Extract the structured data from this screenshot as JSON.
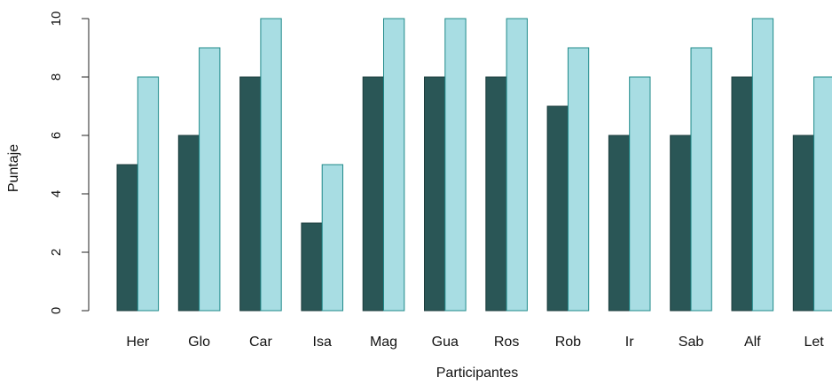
{
  "chart_data": {
    "type": "bar",
    "categories": [
      "Her",
      "Glo",
      "Car",
      "Isa",
      "Mag",
      "Gua",
      "Ros",
      "Rob",
      "Ir",
      "Sab",
      "Alf",
      "Let"
    ],
    "series": [
      {
        "values": [
          5,
          6,
          8,
          3,
          8,
          8,
          8,
          7,
          6,
          6,
          8,
          6
        ],
        "color": "#2a5656",
        "stroke": "#1c3d3d"
      },
      {
        "values": [
          8,
          9,
          10,
          5,
          10,
          10,
          10,
          9,
          8,
          9,
          10,
          8
        ],
        "color": "#a8dde3",
        "stroke": "#1f8a8a"
      }
    ],
    "ylabel": "Puntaje",
    "xlabel": "Participantes",
    "ylim": [
      0,
      10
    ],
    "yticks": [
      0,
      2,
      4,
      6,
      8,
      10
    ],
    "grid": false,
    "legend": "none"
  }
}
